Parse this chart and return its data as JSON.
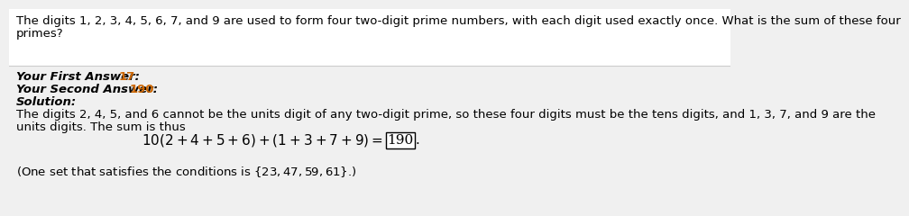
{
  "bg_color": "#f0f0f0",
  "top_bg_color": "#ffffff",
  "title_line1": "The digits 1, 2, 3, 4, 5, 6, 7, and 9 are used to form four two-digit prime numbers, with each digit used exactly once. What is the sum of these four",
  "title_line2": "primes?",
  "first_answer_label": "Your First Answer: ",
  "first_answer_value": "17",
  "second_answer_label": "Your Second Answer: ",
  "second_answer_value": "190",
  "solution_label": "Solution:",
  "solution_text1": "The digits 2, 4, 5, and 6 cannot be the units digit of any two-digit prime, so these four digits must be the tens digits, and 1, 3, 7, and 9 are the",
  "solution_text2": "units digits. The sum is thus",
  "boxed_answer": "190",
  "answer_color": "#cc6600",
  "text_color": "#000000",
  "font_size": 9.5,
  "eq_fontsize": 11
}
